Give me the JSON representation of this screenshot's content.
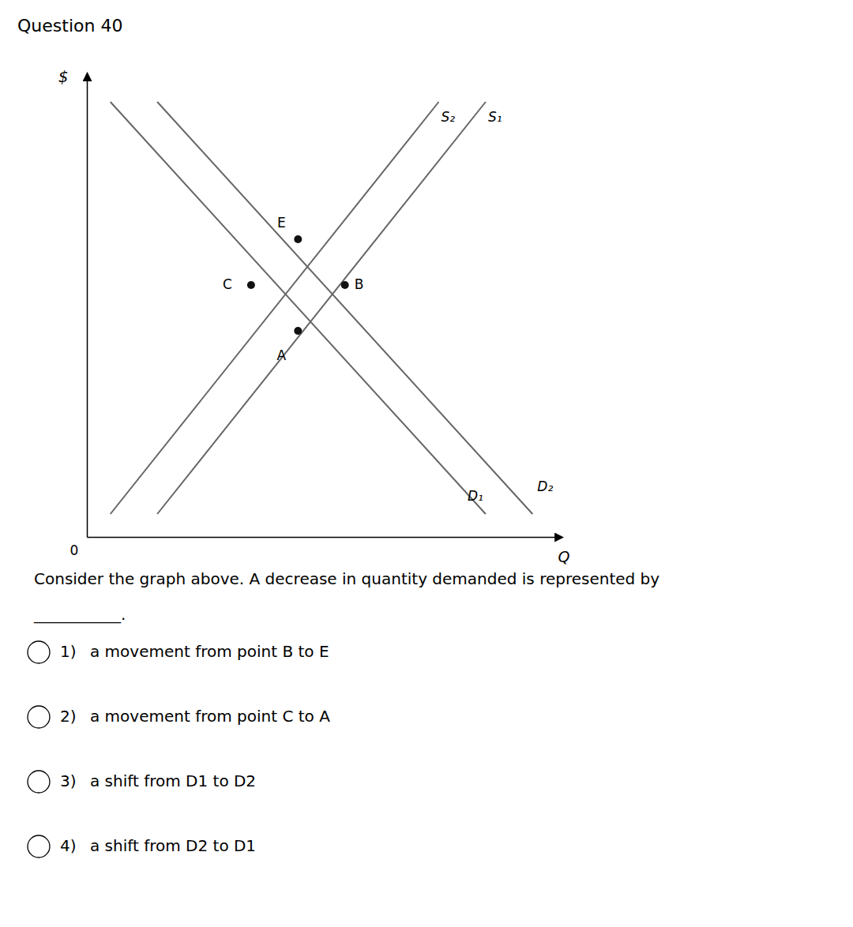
{
  "chart_data": {
    "type": "line",
    "title": "Question 40",
    "x_label": "Q",
    "y_label": "$",
    "annotations": [
      "0"
    ],
    "xlim": [
      0,
      10
    ],
    "ylim": [
      0,
      10
    ],
    "xticks": [],
    "yticks": [],
    "tick_labels": false,
    "grid": false,
    "series": [
      {
        "name": "S₂",
        "type": "line",
        "color": "#666666",
        "x": [
          0.5,
          7.5
        ],
        "values": [
          0.5,
          9.5
        ]
      },
      {
        "name": "S₁",
        "type": "line",
        "color": "#666666",
        "x": [
          1.5,
          8.5
        ],
        "values": [
          0.5,
          9.5
        ]
      },
      {
        "name": "D₁",
        "type": "line",
        "color": "#666666",
        "x": [
          0.5,
          8.5
        ],
        "values": [
          9.5,
          0.5
        ]
      },
      {
        "name": "D₂",
        "type": "line",
        "color": "#666666",
        "x": [
          1.5,
          9.5
        ],
        "values": [
          9.5,
          0.5
        ]
      },
      {
        "name": "E",
        "type": "scatter",
        "color": "#111111",
        "x": [
          4.5
        ],
        "values": [
          6.5
        ]
      },
      {
        "name": "B",
        "type": "scatter",
        "color": "#111111",
        "x": [
          5.5
        ],
        "values": [
          5.5
        ]
      },
      {
        "name": "C",
        "type": "scatter",
        "color": "#111111",
        "x": [
          3.5
        ],
        "values": [
          5.5
        ]
      },
      {
        "name": "A",
        "type": "scatter",
        "color": "#111111",
        "x": [
          4.5
        ],
        "values": [
          4.5
        ]
      }
    ]
  },
  "question": {
    "text": "Consider the graph above. A decrease in quantity demanded is represented by",
    "line2": "___________.",
    "options": [
      {
        "number": "1)",
        "text": "a movement from point B to E"
      },
      {
        "number": "2)",
        "text": "a movement from point C to A"
      },
      {
        "number": "3)",
        "text": "a shift from D1 to D2"
      },
      {
        "number": "4)",
        "text": "a shift from D2 to D1"
      }
    ]
  }
}
